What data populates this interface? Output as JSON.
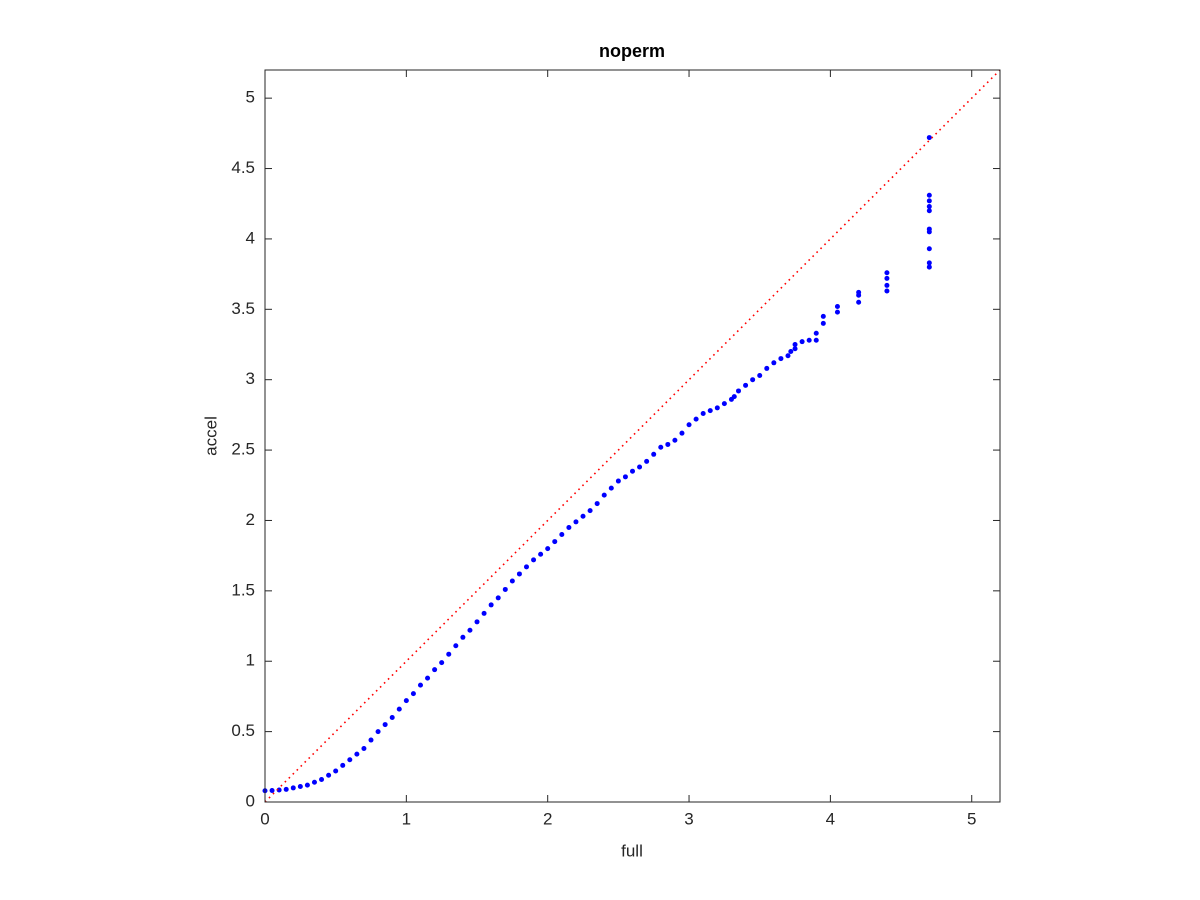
{
  "chart_data": {
    "type": "scatter",
    "title": "noperm",
    "x_label": "full",
    "y_label": "accel",
    "xlim": [
      0,
      5.2
    ],
    "ylim": [
      0,
      5.2
    ],
    "xticks": [
      0,
      1,
      2,
      3,
      4,
      5
    ],
    "yticks": [
      0,
      0.5,
      1,
      1.5,
      2,
      2.5,
      3,
      3.5,
      4,
      4.5,
      5
    ],
    "grid": false,
    "series": [
      {
        "type": "scatter",
        "color": "#0000ff",
        "x": [
          0,
          0.05,
          0.1,
          0.15,
          0.2,
          0.25,
          0.3,
          0.35,
          0.4,
          0.45,
          0.5,
          0.55,
          0.6,
          0.65,
          0.7,
          0.75,
          0.8,
          0.85,
          0.9,
          0.95,
          1.0,
          1.05,
          1.1,
          1.15,
          1.2,
          1.25,
          1.3,
          1.35,
          1.4,
          1.45,
          1.5,
          1.55,
          1.6,
          1.65,
          1.7,
          1.75,
          1.8,
          1.85,
          1.9,
          1.95,
          2.0,
          2.05,
          2.1,
          2.15,
          2.2,
          2.25,
          2.3,
          2.35,
          2.4,
          2.45,
          2.5,
          2.55,
          2.6,
          2.65,
          2.7,
          2.75,
          2.8,
          2.85,
          2.9,
          2.95,
          3.0,
          3.05,
          3.1,
          3.15,
          3.2,
          3.25,
          3.3,
          3.32,
          3.35,
          3.4,
          3.45,
          3.5,
          3.55,
          3.6,
          3.65,
          3.7,
          3.72,
          3.75,
          3.75,
          3.8,
          3.85,
          3.9,
          3.9,
          3.95,
          3.95,
          4.05,
          4.05,
          4.2,
          4.2,
          4.2,
          4.4,
          4.4,
          4.4,
          4.4,
          4.7,
          4.7,
          4.7,
          4.7,
          4.7,
          4.7,
          4.7,
          4.7,
          4.7,
          4.7
        ],
        "values": [
          0.08,
          0.082,
          0.085,
          0.09,
          0.1,
          0.11,
          0.12,
          0.14,
          0.16,
          0.19,
          0.22,
          0.26,
          0.3,
          0.34,
          0.38,
          0.44,
          0.5,
          0.55,
          0.6,
          0.66,
          0.72,
          0.77,
          0.83,
          0.88,
          0.94,
          0.99,
          1.05,
          1.11,
          1.17,
          1.22,
          1.28,
          1.34,
          1.4,
          1.45,
          1.51,
          1.57,
          1.62,
          1.67,
          1.72,
          1.76,
          1.8,
          1.85,
          1.9,
          1.95,
          1.99,
          2.03,
          2.07,
          2.12,
          2.18,
          2.23,
          2.28,
          2.31,
          2.35,
          2.38,
          2.42,
          2.47,
          2.52,
          2.54,
          2.57,
          2.62,
          2.68,
          2.72,
          2.76,
          2.78,
          2.8,
          2.83,
          2.86,
          2.88,
          2.92,
          2.96,
          3.0,
          3.03,
          3.08,
          3.12,
          3.15,
          3.17,
          3.2,
          3.25,
          3.22,
          3.27,
          3.28,
          3.28,
          3.33,
          3.4,
          3.45,
          3.48,
          3.52,
          3.55,
          3.6,
          3.62,
          3.63,
          3.67,
          3.72,
          3.76,
          3.8,
          3.83,
          3.93,
          4.05,
          4.07,
          4.2,
          4.23,
          4.27,
          4.31,
          4.72
        ]
      },
      {
        "type": "line",
        "color": "#ff0000",
        "style": "dotted",
        "x": [
          0,
          5.2
        ],
        "values": [
          0,
          5.2
        ]
      }
    ]
  }
}
